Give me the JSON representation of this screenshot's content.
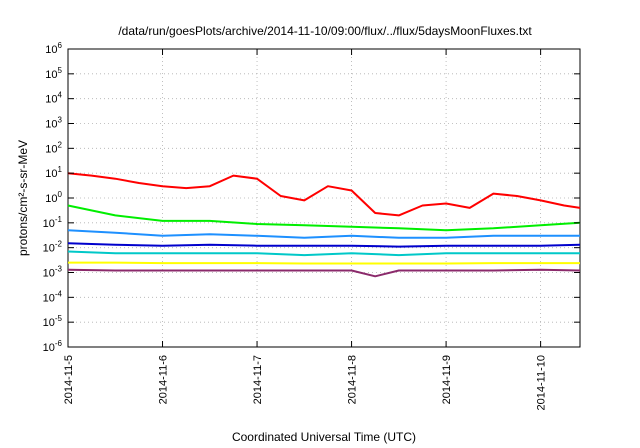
{
  "chart_data": {
    "type": "line",
    "title": "/data/run/goesPlots/archive/2014-11-10/09:00/flux/../flux/5daysMoonFluxes.txt",
    "xlabel": "Coordinated Universal Time (UTC)",
    "ylabel": "protons/cm²-s-sr-MeV",
    "y_scale": "log",
    "ylim": [
      1e-06,
      1000000.0
    ],
    "y_ticks": [
      {
        "value": 1000000.0,
        "label": "10^6"
      },
      {
        "value": 100000.0,
        "label": "10^5"
      },
      {
        "value": 10000.0,
        "label": "10^4"
      },
      {
        "value": 1000.0,
        "label": "10^3"
      },
      {
        "value": 100,
        "label": "10^2"
      },
      {
        "value": 10,
        "label": "10^1"
      },
      {
        "value": 1,
        "label": "10^0"
      },
      {
        "value": 0.1,
        "label": "10^-1"
      },
      {
        "value": 0.01,
        "label": "10^-2"
      },
      {
        "value": 0.001,
        "label": "10^-3"
      },
      {
        "value": 0.0001,
        "label": "10^-4"
      },
      {
        "value": 1e-05,
        "label": "10^-5"
      },
      {
        "value": 1e-06,
        "label": "10^-6"
      }
    ],
    "xlim": [
      "2014-11-05T00:00",
      "2014-11-10T10:00"
    ],
    "x_ticks": [
      "2014-11-5",
      "2014-11-6",
      "2014-11-7",
      "2014-11-8",
      "2014-11-9",
      "2014-11-10"
    ],
    "grid": true,
    "series": [
      {
        "color": "#ff0000",
        "x": [
          "2014-11-05T00:00",
          "2014-11-05T06:00",
          "2014-11-05T12:00",
          "2014-11-05T18:00",
          "2014-11-06T00:00",
          "2014-11-06T06:00",
          "2014-11-06T12:00",
          "2014-11-06T18:00",
          "2014-11-07T00:00",
          "2014-11-07T06:00",
          "2014-11-07T12:00",
          "2014-11-07T18:00",
          "2014-11-08T00:00",
          "2014-11-08T06:00",
          "2014-11-08T12:00",
          "2014-11-08T18:00",
          "2014-11-09T00:00",
          "2014-11-09T06:00",
          "2014-11-09T12:00",
          "2014-11-09T18:00",
          "2014-11-10T00:00",
          "2014-11-10T06:00",
          "2014-11-10T10:00"
        ],
        "values": [
          10,
          8,
          6,
          4,
          3,
          2.5,
          3,
          8,
          6,
          1.2,
          0.8,
          3,
          2,
          0.25,
          0.2,
          0.5,
          0.6,
          0.4,
          1.5,
          1.2,
          0.8,
          0.5,
          0.4
        ]
      },
      {
        "color": "#00ee00",
        "x": [
          "2014-11-05T00:00",
          "2014-11-05T12:00",
          "2014-11-06T00:00",
          "2014-11-06T12:00",
          "2014-11-07T00:00",
          "2014-11-07T12:00",
          "2014-11-08T00:00",
          "2014-11-08T12:00",
          "2014-11-09T00:00",
          "2014-11-09T12:00",
          "2014-11-10T00:00",
          "2014-11-10T10:00"
        ],
        "values": [
          0.5,
          0.2,
          0.12,
          0.12,
          0.09,
          0.08,
          0.07,
          0.06,
          0.05,
          0.06,
          0.08,
          0.1
        ]
      },
      {
        "color": "#1e90ff",
        "x": [
          "2014-11-05T00:00",
          "2014-11-05T12:00",
          "2014-11-06T00:00",
          "2014-11-06T12:00",
          "2014-11-07T00:00",
          "2014-11-07T12:00",
          "2014-11-08T00:00",
          "2014-11-08T12:00",
          "2014-11-09T00:00",
          "2014-11-09T12:00",
          "2014-11-10T00:00",
          "2014-11-10T10:00"
        ],
        "values": [
          0.05,
          0.04,
          0.03,
          0.035,
          0.03,
          0.025,
          0.03,
          0.025,
          0.025,
          0.03,
          0.03,
          0.03
        ]
      },
      {
        "color": "#0000cc",
        "x": [
          "2014-11-05T00:00",
          "2014-11-05T12:00",
          "2014-11-06T00:00",
          "2014-11-06T12:00",
          "2014-11-07T00:00",
          "2014-11-07T12:00",
          "2014-11-08T00:00",
          "2014-11-08T12:00",
          "2014-11-09T00:00",
          "2014-11-09T12:00",
          "2014-11-10T00:00",
          "2014-11-10T10:00"
        ],
        "values": [
          0.015,
          0.013,
          0.012,
          0.013,
          0.012,
          0.012,
          0.012,
          0.011,
          0.012,
          0.012,
          0.012,
          0.013
        ]
      },
      {
        "color": "#00c8c8",
        "x": [
          "2014-11-05T00:00",
          "2014-11-05T12:00",
          "2014-11-06T00:00",
          "2014-11-06T12:00",
          "2014-11-07T00:00",
          "2014-11-07T12:00",
          "2014-11-08T00:00",
          "2014-11-08T12:00",
          "2014-11-09T00:00",
          "2014-11-09T12:00",
          "2014-11-10T00:00",
          "2014-11-10T10:00"
        ],
        "values": [
          0.007,
          0.006,
          0.006,
          0.006,
          0.006,
          0.005,
          0.006,
          0.005,
          0.006,
          0.006,
          0.006,
          0.006
        ]
      },
      {
        "color": "#ffff00",
        "x": [
          "2014-11-05T00:00",
          "2014-11-05T12:00",
          "2014-11-06T00:00",
          "2014-11-06T12:00",
          "2014-11-07T00:00",
          "2014-11-07T12:00",
          "2014-11-08T00:00",
          "2014-11-08T12:00",
          "2014-11-09T00:00",
          "2014-11-09T12:00",
          "2014-11-10T00:00",
          "2014-11-10T10:00"
        ],
        "values": [
          0.0025,
          0.0025,
          0.0024,
          0.0024,
          0.0024,
          0.0023,
          0.0023,
          0.0023,
          0.0023,
          0.0024,
          0.0024,
          0.0024
        ]
      },
      {
        "color": "#8b2a6b",
        "x": [
          "2014-11-05T00:00",
          "2014-11-05T12:00",
          "2014-11-06T00:00",
          "2014-11-06T12:00",
          "2014-11-07T00:00",
          "2014-11-07T12:00",
          "2014-11-08T00:00",
          "2014-11-08T06:00",
          "2014-11-08T12:00",
          "2014-11-09T00:00",
          "2014-11-09T12:00",
          "2014-11-10T00:00",
          "2014-11-10T10:00"
        ],
        "values": [
          0.0013,
          0.0012,
          0.0012,
          0.0012,
          0.0012,
          0.0012,
          0.0012,
          0.0007,
          0.0012,
          0.0012,
          0.0012,
          0.0013,
          0.0012
        ]
      }
    ]
  }
}
